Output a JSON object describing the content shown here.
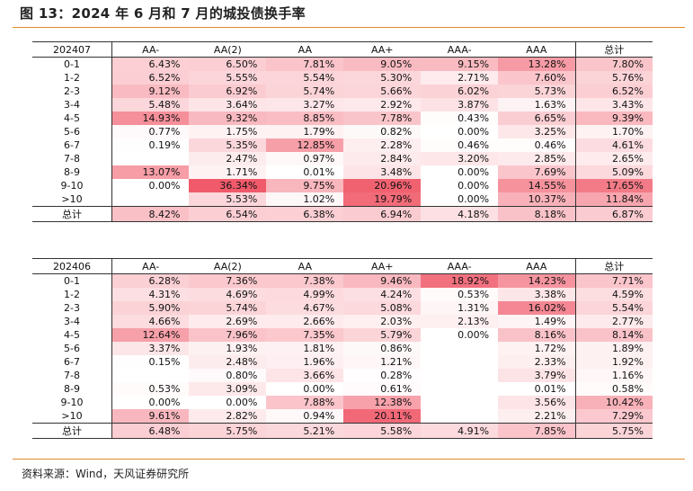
{
  "title": "图 13：2024 年 6 月和 7 月的城投债换手率",
  "source": "资料来源：Wind，天风证券研究所",
  "columns": [
    "AA-",
    "AA(2)",
    "AA",
    "AA+",
    "AAA-",
    "AAA",
    "总计"
  ],
  "tables": [
    {
      "period": "202407",
      "rows": [
        {
          "label": "0-1",
          "values": [
            "6.43%",
            "6.50%",
            "7.81%",
            "9.05%",
            "9.15%",
            "13.28%",
            "7.80%"
          ]
        },
        {
          "label": "1-2",
          "values": [
            "6.52%",
            "5.55%",
            "5.54%",
            "5.30%",
            "2.71%",
            "7.60%",
            "5.76%"
          ]
        },
        {
          "label": "2-3",
          "values": [
            "9.12%",
            "6.92%",
            "5.74%",
            "5.66%",
            "6.02%",
            "5.73%",
            "6.52%"
          ]
        },
        {
          "label": "3-4",
          "values": [
            "5.48%",
            "3.64%",
            "3.27%",
            "2.92%",
            "3.87%",
            "1.63%",
            "3.43%"
          ]
        },
        {
          "label": "4-5",
          "values": [
            "14.93%",
            "9.32%",
            "8.85%",
            "7.78%",
            "0.43%",
            "6.65%",
            "9.39%"
          ]
        },
        {
          "label": "5-6",
          "values": [
            "0.77%",
            "1.75%",
            "1.79%",
            "0.82%",
            "0.00%",
            "3.25%",
            "1.70%"
          ]
        },
        {
          "label": "6-7",
          "values": [
            "0.19%",
            "5.35%",
            "12.85%",
            "2.28%",
            "0.46%",
            "0.46%",
            "4.61%"
          ]
        },
        {
          "label": "7-8",
          "values": [
            "",
            "2.47%",
            "0.97%",
            "2.84%",
            "3.20%",
            "2.85%",
            "2.65%"
          ]
        },
        {
          "label": "8-9",
          "values": [
            "13.07%",
            "1.71%",
            "0.01%",
            "3.48%",
            "0.00%",
            "7.69%",
            "5.09%"
          ]
        },
        {
          "label": "9-10",
          "values": [
            "0.00%",
            "36.34%",
            "9.75%",
            "20.96%",
            "0.00%",
            "14.55%",
            "17.65%"
          ]
        },
        {
          "label": ">10",
          "values": [
            "",
            "5.53%",
            "1.02%",
            "19.79%",
            "0.00%",
            "10.37%",
            "11.84%"
          ]
        }
      ],
      "total": {
        "label": "总计",
        "values": [
          "8.42%",
          "6.54%",
          "6.38%",
          "6.94%",
          "4.18%",
          "8.18%",
          "6.87%"
        ]
      }
    },
    {
      "period": "202406",
      "rows": [
        {
          "label": "0-1",
          "values": [
            "6.28%",
            "7.36%",
            "7.38%",
            "9.46%",
            "18.92%",
            "14.23%",
            "7.71%"
          ]
        },
        {
          "label": "1-2",
          "values": [
            "4.31%",
            "4.69%",
            "4.99%",
            "4.24%",
            "0.53%",
            "3.38%",
            "4.59%"
          ]
        },
        {
          "label": "2-3",
          "values": [
            "5.90%",
            "5.74%",
            "4.67%",
            "5.08%",
            "1.31%",
            "16.02%",
            "5.54%"
          ]
        },
        {
          "label": "3-4",
          "values": [
            "4.66%",
            "2.69%",
            "2.66%",
            "2.03%",
            "2.13%",
            "1.49%",
            "2.77%"
          ]
        },
        {
          "label": "4-5",
          "values": [
            "12.64%",
            "7.96%",
            "7.35%",
            "5.79%",
            "0.00%",
            "8.16%",
            "8.14%"
          ]
        },
        {
          "label": "5-6",
          "values": [
            "3.37%",
            "1.93%",
            "1.81%",
            "0.86%",
            "",
            "1.72%",
            "1.89%"
          ]
        },
        {
          "label": "6-7",
          "values": [
            "0.15%",
            "2.48%",
            "1.96%",
            "1.21%",
            "",
            "2.33%",
            "1.92%"
          ]
        },
        {
          "label": "7-8",
          "values": [
            "",
            "0.80%",
            "3.66%",
            "0.28%",
            "",
            "3.79%",
            "1.16%"
          ]
        },
        {
          "label": "8-9",
          "values": [
            "0.53%",
            "3.09%",
            "0.00%",
            "0.61%",
            "",
            "0.01%",
            "0.58%"
          ]
        },
        {
          "label": "9-10",
          "values": [
            "0.00%",
            "0.00%",
            "7.88%",
            "12.38%",
            "",
            "3.56%",
            "10.42%"
          ]
        },
        {
          "label": ">10",
          "values": [
            "9.61%",
            "2.82%",
            "0.94%",
            "20.11%",
            "",
            "2.21%",
            "7.29%"
          ]
        }
      ],
      "total": {
        "label": "总计",
        "values": [
          "6.48%",
          "5.75%",
          "5.21%",
          "5.58%",
          "4.91%",
          "7.85%",
          "5.75%"
        ]
      }
    }
  ],
  "colors": {
    "rule": "#e08a2e",
    "heat_low": "#ffffff",
    "heat_high": "#f05a6a"
  }
}
